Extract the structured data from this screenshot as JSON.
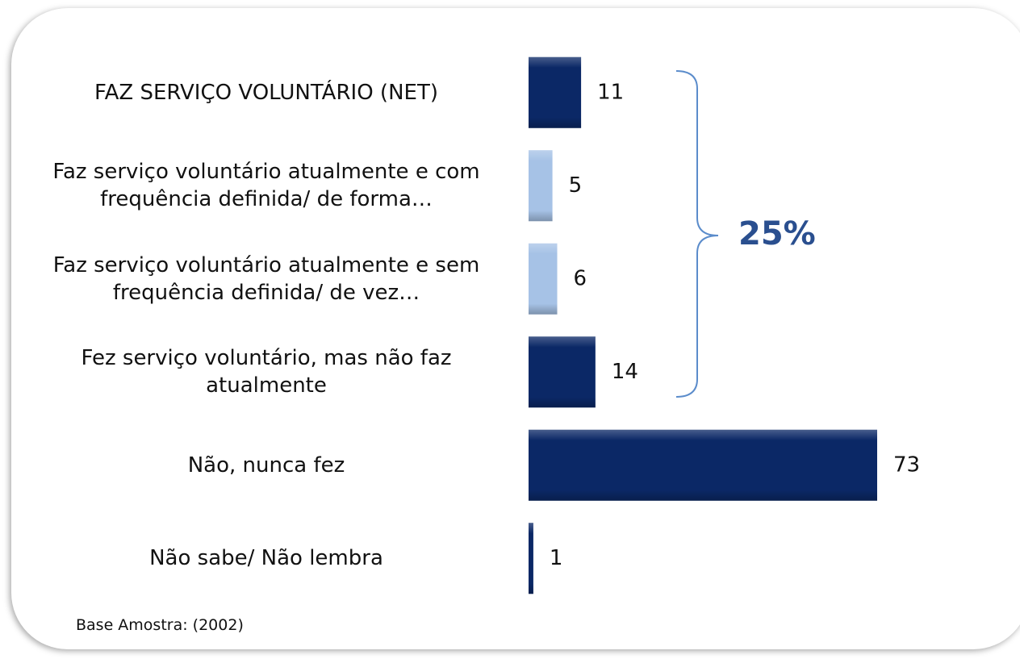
{
  "chart_data": {
    "type": "bar",
    "orientation": "horizontal",
    "categories": [
      "FAZ SERVIÇO VOLUNTÁRIO (NET)",
      "Faz serviço voluntário atualmente e com frequência definida/ de forma…",
      "Faz serviço voluntário atualmente e sem frequência definida/ de vez…",
      "Fez serviço voluntário, mas não faz atualmente",
      "Não, nunca fez",
      "Não sabe/ Não lembra"
    ],
    "values": [
      11,
      5,
      6,
      14,
      73,
      1
    ],
    "colors": [
      "#0b2866",
      "#a6c2e6",
      "#a6c2e6",
      "#0b2866",
      "#0b2866",
      "#0b2866"
    ],
    "annotation": "25%",
    "note": "Base Amostra: (2002)"
  }
}
